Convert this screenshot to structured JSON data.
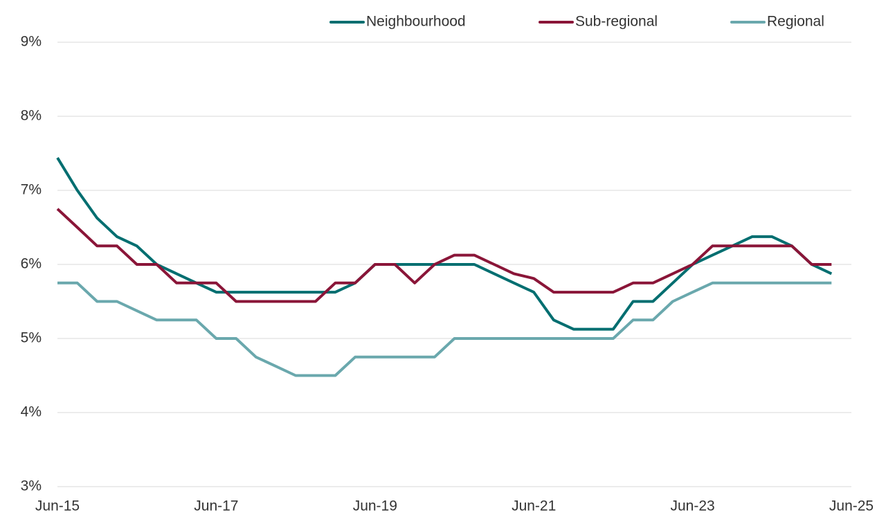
{
  "chart_data": {
    "type": "line",
    "categories": [
      "Jun-15",
      null,
      null,
      null,
      null,
      null,
      null,
      null,
      "Jun-17",
      null,
      null,
      null,
      null,
      null,
      null,
      null,
      "Jun-19",
      null,
      null,
      null,
      null,
      null,
      null,
      null,
      "Jun-21",
      null,
      null,
      null,
      null,
      null,
      null,
      null,
      "Jun-23",
      null,
      null,
      null,
      null,
      null,
      null,
      null,
      "Jun-25"
    ],
    "series": [
      {
        "name": "Neighbourhood",
        "color": "#006e70",
        "values": [
          7.44,
          7.0,
          6.625,
          6.375,
          6.25,
          6.0,
          5.875,
          5.75,
          5.625,
          5.625,
          5.625,
          5.625,
          5.625,
          5.625,
          5.625,
          5.75,
          6.0,
          6.0,
          6.0,
          6.0,
          6.0,
          6.0,
          5.875,
          5.75,
          5.625,
          5.25,
          5.125,
          5.125,
          5.125,
          5.5,
          5.5,
          5.75,
          6.0,
          6.125,
          6.25,
          6.375,
          6.375,
          6.25,
          6.0,
          5.875,
          null
        ]
      },
      {
        "name": "Sub-regional",
        "color": "#8a1538",
        "values": [
          6.75,
          6.5,
          6.25,
          6.25,
          6.0,
          6.0,
          5.75,
          5.75,
          5.75,
          5.5,
          5.5,
          5.5,
          5.5,
          5.5,
          5.75,
          5.75,
          6.0,
          6.0,
          5.75,
          6.0,
          6.125,
          6.125,
          6.0,
          5.875,
          5.81,
          5.625,
          5.625,
          5.625,
          5.625,
          5.75,
          5.75,
          5.875,
          6.0,
          6.25,
          6.25,
          6.25,
          6.25,
          6.25,
          6.0,
          6.0,
          null
        ]
      },
      {
        "name": "Regional",
        "color": "#6aa8ad",
        "values": [
          5.75,
          5.75,
          5.5,
          5.5,
          5.375,
          5.25,
          5.25,
          5.25,
          5.0,
          5.0,
          4.75,
          4.625,
          4.5,
          4.5,
          4.5,
          4.75,
          4.75,
          4.75,
          4.75,
          4.75,
          5.0,
          5.0,
          5.0,
          5.0,
          5.0,
          5.0,
          5.0,
          5.0,
          5.0,
          5.25,
          5.25,
          5.5,
          5.625,
          5.75,
          5.75,
          5.75,
          5.75,
          5.75,
          5.75,
          5.75,
          null
        ]
      }
    ],
    "ylim": [
      3,
      9
    ],
    "yticks": [
      {
        "value": 3,
        "label": "3%"
      },
      {
        "value": 4,
        "label": "4%"
      },
      {
        "value": 5,
        "label": "5%"
      },
      {
        "value": 6,
        "label": "6%"
      },
      {
        "value": 7,
        "label": "7%"
      },
      {
        "value": 8,
        "label": "8%"
      },
      {
        "value": 9,
        "label": "9%"
      }
    ],
    "grid": true,
    "legend": "top"
  }
}
